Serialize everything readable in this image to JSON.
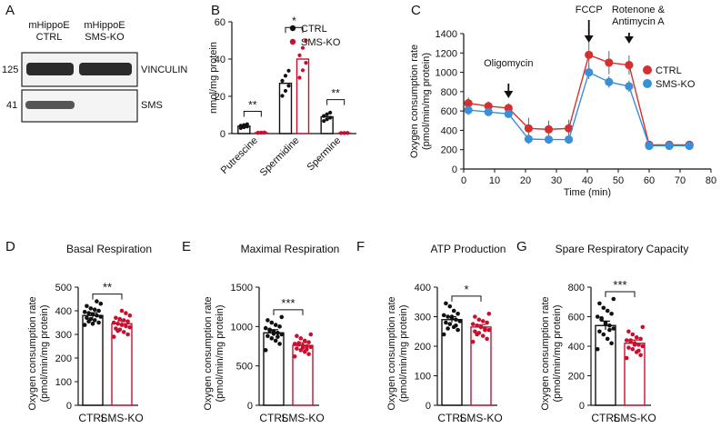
{
  "panel_letters": {
    "A": "A",
    "B": "B",
    "C": "C",
    "D": "D",
    "E": "E",
    "F": "F",
    "G": "G"
  },
  "colors": {
    "ctrl": "#111111",
    "ko": "#c8102e",
    "ctrl_line": "#d62f2f",
    "ko_line": "#3a8fd9"
  },
  "panel_a": {
    "lane_labels": [
      "mHippoE\nCTRL",
      "mHippoE\nSMS-KO"
    ],
    "lane1": [
      "mHippoE",
      "CTRL"
    ],
    "lane2": [
      "mHippoE",
      "SMS-KO"
    ],
    "blots": [
      {
        "mw": "125",
        "label": "VINCULIN"
      },
      {
        "mw": "41",
        "label": "SMS"
      }
    ]
  },
  "chart_data": [
    {
      "id": "B",
      "type": "bar",
      "title": "",
      "ylabel": "nmol/mg protein",
      "ylim": [
        0,
        60
      ],
      "yticks": [
        0,
        20,
        40,
        60
      ],
      "categories": [
        "Putrescine",
        "Spermidine",
        "Spermine"
      ],
      "series": [
        {
          "name": "CTRL",
          "values": [
            4,
            27,
            9
          ]
        },
        {
          "name": "SMS-KO",
          "values": [
            0.5,
            40,
            0.3
          ]
        }
      ],
      "significance": [
        "**",
        "*",
        "**"
      ],
      "legend": [
        "CTRL",
        "SMS-KO"
      ]
    },
    {
      "id": "C",
      "type": "line",
      "xlabel": "Time (min)",
      "ylabel": "Oxygen consumption rate\n(pmol/min/mg protein)",
      "ylabel_lines": [
        "Oxygen consumption rate",
        "(pmol/min/mg protein)"
      ],
      "xlim": [
        0,
        80
      ],
      "ylim": [
        0,
        1400
      ],
      "xticks": [
        0,
        10,
        20,
        30,
        40,
        50,
        60,
        70,
        80
      ],
      "yticks": [
        0,
        200,
        400,
        600,
        800,
        1000,
        1200,
        1400
      ],
      "x": [
        1.5,
        8,
        14.5,
        21,
        27.5,
        34,
        40.5,
        47,
        53.5,
        60,
        66.5,
        73
      ],
      "series": [
        {
          "name": "CTRL",
          "values": [
            680,
            650,
            630,
            420,
            410,
            420,
            1180,
            1100,
            1075,
            250,
            250,
            250
          ],
          "err": [
            60,
            50,
            50,
            110,
            90,
            90,
            130,
            120,
            100,
            20,
            20,
            20
          ]
        },
        {
          "name": "SMS-KO",
          "values": [
            610,
            590,
            570,
            310,
            305,
            305,
            1000,
            900,
            855,
            240,
            240,
            240
          ],
          "err": [
            50,
            40,
            40,
            50,
            40,
            40,
            70,
            60,
            60,
            15,
            15,
            15
          ]
        }
      ],
      "annotations": [
        {
          "lines": [
            "Oligomycin"
          ],
          "x": 14.5
        },
        {
          "lines": [
            "FCCP"
          ],
          "x": 40.5
        },
        {
          "lines": [
            "Rotenone &",
            "Antimycin A"
          ],
          "x": 53.5
        }
      ],
      "legend": [
        "CTRL",
        "SMS-KO"
      ]
    },
    {
      "id": "D",
      "type": "bar",
      "title": "Basal Respiration",
      "ylabel": "Oxygen consumption rate\n(pmol/min/mg protein)",
      "ylim": [
        0,
        500
      ],
      "yticks": [
        0,
        100,
        200,
        300,
        400,
        500
      ],
      "categories": [
        "CTRL",
        "SMS-KO"
      ],
      "values": [
        380,
        345
      ],
      "err": [
        12,
        12
      ],
      "points": [
        [
          340,
          350,
          360,
          365,
          370,
          375,
          380,
          385,
          390,
          395,
          400,
          405,
          410,
          420,
          430,
          440,
          345,
          355
        ],
        [
          290,
          300,
          310,
          320,
          325,
          330,
          335,
          340,
          345,
          350,
          355,
          360,
          365,
          370,
          380,
          390,
          400,
          315
        ]
      ],
      "significance": "**"
    },
    {
      "id": "E",
      "type": "bar",
      "title": "Maximal Respiration",
      "ylabel": "Oxygen consumption rate\n(pmol/min/mg protein)",
      "ylim": [
        0,
        1500
      ],
      "yticks": [
        0,
        500,
        1000,
        1500
      ],
      "categories": [
        "CTRL",
        "SMS-KO"
      ],
      "values": [
        920,
        760
      ],
      "err": [
        40,
        35
      ],
      "points": [
        [
          700,
          780,
          820,
          850,
          880,
          900,
          920,
          940,
          960,
          980,
          1000,
          1020,
          1050,
          1080,
          1120,
          870,
          910,
          950
        ],
        [
          620,
          650,
          680,
          700,
          720,
          740,
          750,
          760,
          770,
          780,
          800,
          820,
          850,
          880,
          900,
          710,
          730,
          790
        ]
      ],
      "significance": "***"
    },
    {
      "id": "F",
      "type": "bar",
      "title": "ATP Production",
      "ylabel": "Oxygen consumption rate\n(pmol/min/mg protein)",
      "ylim": [
        0,
        400
      ],
      "yticks": [
        0,
        100,
        200,
        300,
        400
      ],
      "categories": [
        "CTRL",
        "SMS-KO"
      ],
      "values": [
        290,
        265
      ],
      "err": [
        10,
        8
      ],
      "points": [
        [
          240,
          255,
          265,
          275,
          280,
          285,
          290,
          295,
          300,
          305,
          310,
          320,
          335,
          345,
          285,
          270,
          300,
          260
        ],
        [
          215,
          225,
          235,
          245,
          250,
          255,
          260,
          265,
          270,
          275,
          280,
          285,
          290,
          300,
          310,
          255,
          265,
          240
        ]
      ],
      "significance": "*"
    },
    {
      "id": "G",
      "type": "bar",
      "title": "Spare Respiratory Capacity",
      "ylabel": "Oxygen consumption rate\n(pmol/min/mg protein)",
      "ylim": [
        0,
        800
      ],
      "yticks": [
        0,
        200,
        400,
        600,
        800
      ],
      "categories": [
        "CTRL",
        "SMS-KO"
      ],
      "values": [
        540,
        420
      ],
      "err": [
        30,
        22
      ],
      "points": [
        [
          380,
          420,
          450,
          480,
          500,
          520,
          540,
          560,
          580,
          600,
          620,
          640,
          660,
          690,
          720,
          510,
          550,
          590
        ],
        [
          320,
          340,
          360,
          380,
          390,
          400,
          410,
          420,
          430,
          440,
          450,
          460,
          480,
          500,
          530,
          370,
          410,
          440
        ]
      ],
      "significance": "***"
    }
  ]
}
